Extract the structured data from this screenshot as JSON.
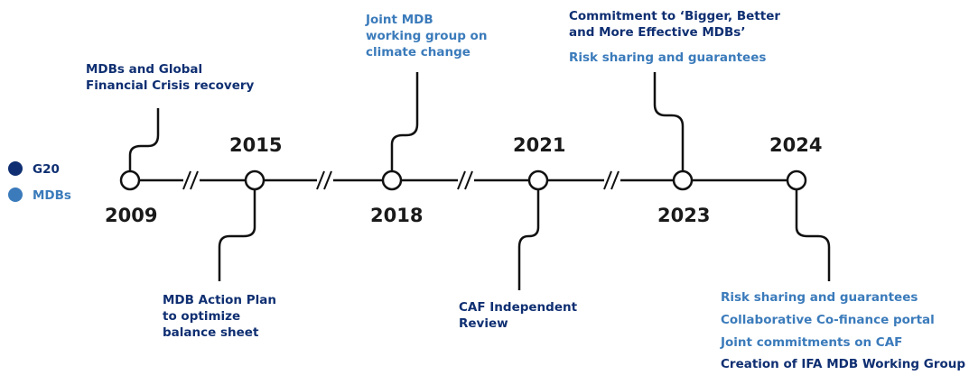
{
  "legend": [
    {
      "label": "G20",
      "color": "#0f2f72"
    },
    {
      "label": "MDBs",
      "color": "#3b7bbb"
    }
  ],
  "milestones": [
    {
      "year": "2009",
      "events": [
        {
          "color": "#0f2f72",
          "lines": [
            "MDBs and Global",
            "Financial Crisis recovery"
          ]
        }
      ]
    },
    {
      "year": "2015",
      "events": [
        {
          "color": "#0f2f72",
          "lines": [
            "MDB Action Plan",
            "to optimize",
            "balance sheet"
          ]
        }
      ]
    },
    {
      "year": "2018",
      "events": [
        {
          "color": "#3b7bbb",
          "lines": [
            "Joint MDB",
            "working group on",
            "climate change"
          ]
        }
      ]
    },
    {
      "year": "2021",
      "events": [
        {
          "color": "#0f2f72",
          "lines": [
            "CAF Independent",
            "Review"
          ]
        }
      ]
    },
    {
      "year": "2023",
      "events": [
        {
          "color": "#0f2f72",
          "lines": [
            "Commitment to ‘Bigger, Better",
            "and More Effective MDBs’"
          ]
        },
        {
          "color": "#3b7bbb",
          "lines": [
            "Risk sharing and guarantees"
          ]
        }
      ]
    },
    {
      "year": "2024",
      "events": [
        {
          "color": "#3b7bbb",
          "lines": [
            "Risk sharing and guarantees"
          ]
        },
        {
          "color": "#3b7bbb",
          "lines": [
            "Collaborative Co-finance portal"
          ]
        },
        {
          "color": "#3b7bbb",
          "lines": [
            "Joint commitments on CAF"
          ]
        },
        {
          "color": "#0f2f72",
          "lines": [
            "Creation of IFA MDB Working Group"
          ]
        }
      ]
    }
  ]
}
